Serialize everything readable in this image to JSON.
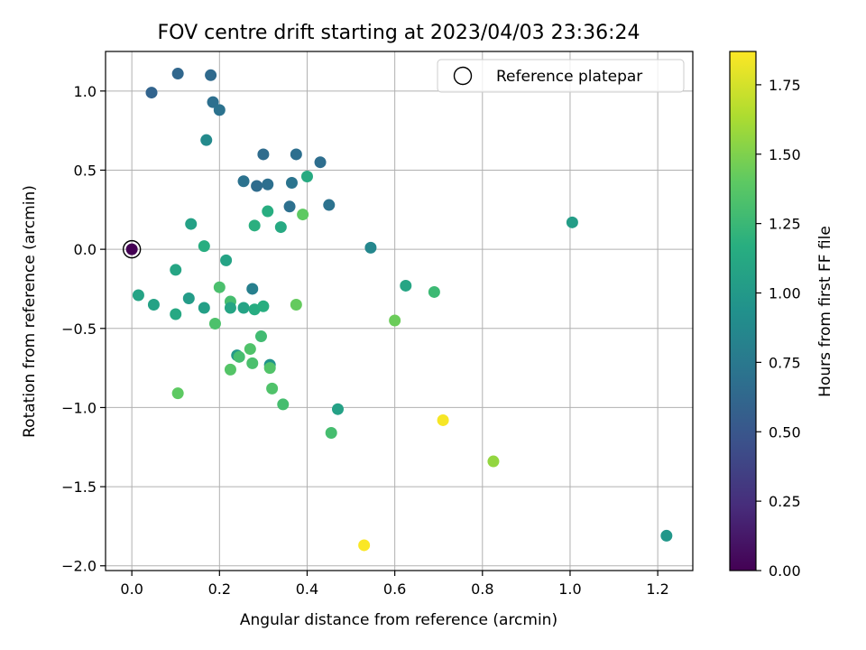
{
  "chart_data": {
    "type": "scatter",
    "title": "FOV centre drift starting at 2023/04/03 23:36:24",
    "xlabel": "Angular distance from reference (arcmin)",
    "ylabel": "Rotation from reference (arcmin)",
    "xlim": [
      -0.06,
      1.28
    ],
    "ylim": [
      -2.03,
      1.25
    ],
    "xticks": [
      0.0,
      0.2,
      0.4,
      0.6,
      0.8,
      1.0,
      1.2
    ],
    "xtick_labels": [
      "0.0",
      "0.2",
      "0.4",
      "0.6",
      "0.8",
      "1.0",
      "1.2"
    ],
    "yticks": [
      1.0,
      0.5,
      0.0,
      -0.5,
      -1.0,
      -1.5,
      -2.0
    ],
    "ytick_labels": [
      "1.0",
      "0.5",
      "0.0",
      "−0.5",
      "−1.0",
      "−1.5",
      "−2.0"
    ],
    "grid": true,
    "legend": {
      "placement": "top-right",
      "entries": [
        "Reference platepar"
      ]
    },
    "colorbar": {
      "label": "Hours from first FF file",
      "range": [
        0.0,
        1.87
      ],
      "ticks": [
        0.0,
        0.25,
        0.5,
        0.75,
        1.0,
        1.25,
        1.5,
        1.75
      ],
      "tick_labels": [
        "0.00",
        "0.25",
        "0.50",
        "0.75",
        "1.00",
        "1.25",
        "1.50",
        "1.75"
      ],
      "colormap": "viridis"
    },
    "reference_point": {
      "x": 0.0,
      "y": 0.0
    },
    "points": [
      {
        "x": 0.0,
        "y": 0.0,
        "hours": 0.0
      },
      {
        "x": 0.045,
        "y": 0.99,
        "hours": 0.6
      },
      {
        "x": 0.105,
        "y": 1.11,
        "hours": 0.62
      },
      {
        "x": 0.18,
        "y": 1.1,
        "hours": 0.64
      },
      {
        "x": 0.185,
        "y": 0.93,
        "hours": 0.68
      },
      {
        "x": 0.2,
        "y": 0.88,
        "hours": 0.7
      },
      {
        "x": 0.17,
        "y": 0.69,
        "hours": 0.88
      },
      {
        "x": 0.3,
        "y": 0.6,
        "hours": 0.66
      },
      {
        "x": 0.375,
        "y": 0.6,
        "hours": 0.68
      },
      {
        "x": 0.43,
        "y": 0.55,
        "hours": 0.67
      },
      {
        "x": 0.255,
        "y": 0.43,
        "hours": 0.7
      },
      {
        "x": 0.285,
        "y": 0.4,
        "hours": 0.66
      },
      {
        "x": 0.31,
        "y": 0.41,
        "hours": 0.68
      },
      {
        "x": 0.365,
        "y": 0.42,
        "hours": 0.72
      },
      {
        "x": 0.4,
        "y": 0.46,
        "hours": 1.14
      },
      {
        "x": 0.36,
        "y": 0.27,
        "hours": 0.69
      },
      {
        "x": 0.45,
        "y": 0.28,
        "hours": 0.7
      },
      {
        "x": 0.31,
        "y": 0.24,
        "hours": 1.16
      },
      {
        "x": 0.39,
        "y": 0.22,
        "hours": 1.4
      },
      {
        "x": 0.28,
        "y": 0.15,
        "hours": 1.18
      },
      {
        "x": 0.34,
        "y": 0.14,
        "hours": 1.13
      },
      {
        "x": 0.135,
        "y": 0.16,
        "hours": 1.06
      },
      {
        "x": 0.165,
        "y": 0.02,
        "hours": 1.16
      },
      {
        "x": 0.545,
        "y": 0.01,
        "hours": 0.86
      },
      {
        "x": 1.005,
        "y": 0.17,
        "hours": 1.03
      },
      {
        "x": 0.215,
        "y": -0.07,
        "hours": 1.08
      },
      {
        "x": 0.1,
        "y": -0.13,
        "hours": 1.1
      },
      {
        "x": 0.015,
        "y": -0.29,
        "hours": 1.08
      },
      {
        "x": 0.05,
        "y": -0.35,
        "hours": 1.07
      },
      {
        "x": 0.1,
        "y": -0.41,
        "hours": 1.12
      },
      {
        "x": 0.13,
        "y": -0.31,
        "hours": 1.02
      },
      {
        "x": 0.165,
        "y": -0.37,
        "hours": 1.05
      },
      {
        "x": 0.2,
        "y": -0.24,
        "hours": 1.32
      },
      {
        "x": 0.225,
        "y": -0.33,
        "hours": 1.3
      },
      {
        "x": 0.225,
        "y": -0.37,
        "hours": 1.1
      },
      {
        "x": 0.255,
        "y": -0.37,
        "hours": 1.08
      },
      {
        "x": 0.275,
        "y": -0.25,
        "hours": 0.8
      },
      {
        "x": 0.28,
        "y": -0.38,
        "hours": 1.15
      },
      {
        "x": 0.3,
        "y": -0.36,
        "hours": 1.17
      },
      {
        "x": 0.19,
        "y": -0.47,
        "hours": 1.33
      },
      {
        "x": 0.375,
        "y": -0.35,
        "hours": 1.42
      },
      {
        "x": 0.295,
        "y": -0.55,
        "hours": 1.28
      },
      {
        "x": 0.27,
        "y": -0.63,
        "hours": 1.34
      },
      {
        "x": 0.24,
        "y": -0.67,
        "hours": 1.0
      },
      {
        "x": 0.245,
        "y": -0.68,
        "hours": 1.3
      },
      {
        "x": 0.225,
        "y": -0.76,
        "hours": 1.36
      },
      {
        "x": 0.275,
        "y": -0.72,
        "hours": 1.32
      },
      {
        "x": 0.315,
        "y": -0.73,
        "hours": 0.95
      },
      {
        "x": 0.315,
        "y": -0.75,
        "hours": 1.35
      },
      {
        "x": 0.32,
        "y": -0.88,
        "hours": 1.34
      },
      {
        "x": 0.345,
        "y": -0.98,
        "hours": 1.3
      },
      {
        "x": 0.105,
        "y": -0.91,
        "hours": 1.4
      },
      {
        "x": 0.47,
        "y": -1.01,
        "hours": 1.06
      },
      {
        "x": 0.455,
        "y": -1.16,
        "hours": 1.3
      },
      {
        "x": 0.6,
        "y": -0.45,
        "hours": 1.44
      },
      {
        "x": 0.625,
        "y": -0.23,
        "hours": 1.1
      },
      {
        "x": 0.69,
        "y": -0.27,
        "hours": 1.26
      },
      {
        "x": 0.71,
        "y": -1.08,
        "hours": 1.85
      },
      {
        "x": 0.825,
        "y": -1.34,
        "hours": 1.56
      },
      {
        "x": 0.53,
        "y": -1.87,
        "hours": 1.86
      },
      {
        "x": 1.22,
        "y": -1.81,
        "hours": 0.98
      }
    ]
  }
}
